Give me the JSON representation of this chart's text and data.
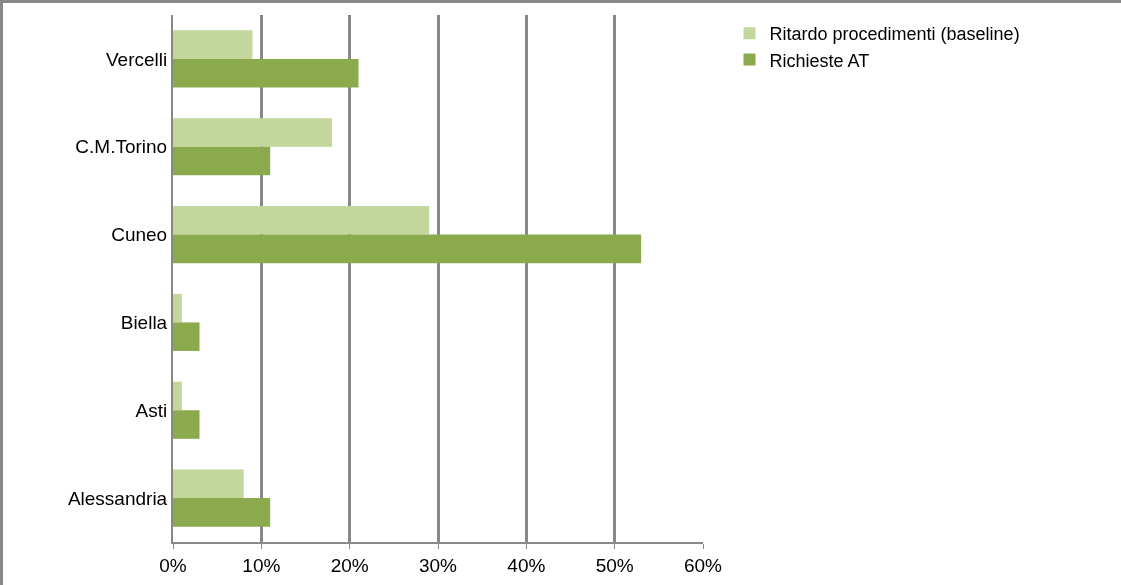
{
  "chart_data": {
    "type": "bar",
    "orientation": "horizontal",
    "categories": [
      "Vercelli",
      "C.M.Torino",
      "Cuneo",
      "Biella",
      "Asti",
      "Alessandria"
    ],
    "series": [
      {
        "name": "Ritardo procedimenti (baseline)",
        "color": "#c3d69b",
        "values": [
          9,
          18,
          29,
          1,
          1,
          8
        ]
      },
      {
        "name": "Richieste AT",
        "color": "#8aaa4d",
        "values": [
          21,
          11,
          53,
          3,
          3,
          11
        ]
      }
    ],
    "xlim": [
      0,
      60
    ],
    "xticks": [
      {
        "value": 0,
        "label": "0%"
      },
      {
        "value": 10,
        "label": "10%"
      },
      {
        "value": 20,
        "label": "20%"
      },
      {
        "value": 30,
        "label": "30%"
      },
      {
        "value": 40,
        "label": "40%"
      },
      {
        "value": 50,
        "label": "50%"
      },
      {
        "value": 60,
        "label": "60%"
      }
    ],
    "grid": "x",
    "legend": "top right"
  }
}
